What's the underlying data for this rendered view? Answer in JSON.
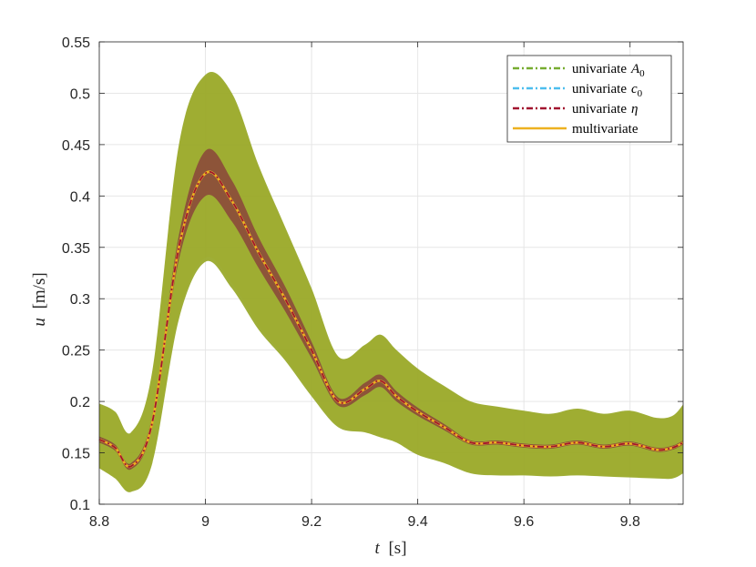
{
  "chart_data": {
    "type": "line",
    "xlabel_var": "t",
    "xlabel_unit": "[s]",
    "ylabel_var": "u",
    "ylabel_unit": "[m/s]",
    "xlim": [
      8.8,
      9.9
    ],
    "ylim": [
      0.1,
      0.55
    ],
    "xticks": [
      8.8,
      9.0,
      9.2,
      9.4,
      9.6,
      9.8
    ],
    "xtick_labels": [
      "8.8",
      "9",
      "9.2",
      "9.4",
      "9.6",
      "9.8"
    ],
    "yticks": [
      0.1,
      0.15,
      0.2,
      0.25,
      0.3,
      0.35,
      0.4,
      0.45,
      0.5,
      0.55
    ],
    "ytick_labels": [
      "0.1",
      "0.15",
      "0.2",
      "0.25",
      "0.3",
      "0.35",
      "0.4",
      "0.45",
      "0.5",
      "0.55"
    ],
    "grid": true,
    "legend_position": "top-right",
    "colors": {
      "A0": "#77ac30",
      "c0": "#4dbeee",
      "eta": "#a2142f",
      "multi": "#edb120",
      "band_A0": "#9aaa2c",
      "band_eta": "#8b4a3a"
    },
    "series": [
      {
        "key": "A0",
        "name_prefix": "univariate",
        "name_symbol": "A",
        "name_subscript": "0",
        "style": "dash-dot",
        "x": [
          8.8,
          8.83,
          8.86,
          8.9,
          8.95,
          9.0,
          9.05,
          9.1,
          9.15,
          9.2,
          9.25,
          9.3,
          9.33,
          9.36,
          9.4,
          9.45,
          9.5,
          9.55,
          9.6,
          9.65,
          9.7,
          9.75,
          9.8,
          9.85,
          9.88,
          9.9
        ],
        "y": [
          0.163,
          0.155,
          0.137,
          0.18,
          0.35,
          0.422,
          0.395,
          0.345,
          0.3,
          0.25,
          0.2,
          0.212,
          0.22,
          0.205,
          0.19,
          0.175,
          0.16,
          0.16,
          0.157,
          0.156,
          0.16,
          0.156,
          0.159,
          0.153,
          0.155,
          0.16
        ],
        "band_lower": [
          0.135,
          0.125,
          0.112,
          0.14,
          0.28,
          0.336,
          0.31,
          0.27,
          0.24,
          0.205,
          0.175,
          0.17,
          0.165,
          0.16,
          0.148,
          0.14,
          0.13,
          0.128,
          0.128,
          0.127,
          0.128,
          0.127,
          0.126,
          0.125,
          0.125,
          0.13
        ],
        "band_upper": [
          0.198,
          0.19,
          0.17,
          0.23,
          0.45,
          0.518,
          0.5,
          0.43,
          0.37,
          0.31,
          0.244,
          0.255,
          0.265,
          0.25,
          0.232,
          0.215,
          0.2,
          0.195,
          0.191,
          0.188,
          0.193,
          0.188,
          0.191,
          0.184,
          0.186,
          0.197
        ]
      },
      {
        "key": "c0",
        "name_prefix": "univariate",
        "name_symbol": "c",
        "name_subscript": "0",
        "style": "dash-dot",
        "x": [
          8.8,
          8.83,
          8.86,
          8.9,
          8.95,
          9.0,
          9.05,
          9.1,
          9.15,
          9.2,
          9.25,
          9.3,
          9.33,
          9.36,
          9.4,
          9.45,
          9.5,
          9.55,
          9.6,
          9.65,
          9.7,
          9.75,
          9.8,
          9.85,
          9.88,
          9.9
        ],
        "y": [
          0.163,
          0.155,
          0.137,
          0.18,
          0.35,
          0.422,
          0.395,
          0.345,
          0.3,
          0.25,
          0.2,
          0.212,
          0.22,
          0.205,
          0.19,
          0.175,
          0.16,
          0.16,
          0.157,
          0.156,
          0.16,
          0.156,
          0.159,
          0.153,
          0.155,
          0.16
        ]
      },
      {
        "key": "eta",
        "name_prefix": "univariate",
        "name_symbol": "η",
        "name_subscript": "",
        "style": "dash-dot",
        "x": [
          8.8,
          8.83,
          8.86,
          8.9,
          8.95,
          9.0,
          9.05,
          9.1,
          9.15,
          9.2,
          9.25,
          9.3,
          9.33,
          9.36,
          9.4,
          9.45,
          9.5,
          9.55,
          9.6,
          9.65,
          9.7,
          9.75,
          9.8,
          9.85,
          9.88,
          9.9
        ],
        "y": [
          0.163,
          0.155,
          0.137,
          0.18,
          0.35,
          0.422,
          0.395,
          0.345,
          0.3,
          0.25,
          0.2,
          0.212,
          0.22,
          0.205,
          0.19,
          0.175,
          0.16,
          0.16,
          0.157,
          0.156,
          0.16,
          0.156,
          0.159,
          0.153,
          0.155,
          0.16
        ],
        "band_lower": [
          0.16,
          0.152,
          0.134,
          0.175,
          0.338,
          0.4,
          0.375,
          0.33,
          0.288,
          0.242,
          0.196,
          0.206,
          0.214,
          0.2,
          0.186,
          0.172,
          0.158,
          0.158,
          0.155,
          0.154,
          0.158,
          0.154,
          0.157,
          0.151,
          0.153,
          0.158
        ],
        "band_upper": [
          0.166,
          0.158,
          0.14,
          0.186,
          0.362,
          0.444,
          0.415,
          0.36,
          0.312,
          0.258,
          0.204,
          0.218,
          0.226,
          0.21,
          0.194,
          0.178,
          0.162,
          0.162,
          0.159,
          0.158,
          0.162,
          0.158,
          0.161,
          0.155,
          0.157,
          0.162
        ]
      },
      {
        "key": "multi",
        "name_prefix": "multivariate",
        "name_symbol": "",
        "name_subscript": "",
        "style": "solid",
        "x": [
          8.8,
          8.83,
          8.86,
          8.9,
          8.95,
          9.0,
          9.05,
          9.1,
          9.15,
          9.2,
          9.25,
          9.3,
          9.33,
          9.36,
          9.4,
          9.45,
          9.5,
          9.55,
          9.6,
          9.65,
          9.7,
          9.75,
          9.8,
          9.85,
          9.88,
          9.9
        ],
        "y": [
          0.163,
          0.155,
          0.137,
          0.18,
          0.35,
          0.422,
          0.395,
          0.345,
          0.3,
          0.25,
          0.2,
          0.212,
          0.22,
          0.205,
          0.19,
          0.175,
          0.16,
          0.16,
          0.157,
          0.156,
          0.16,
          0.156,
          0.159,
          0.153,
          0.155,
          0.16
        ],
        "band_lower": [
          0.135,
          0.126,
          0.113,
          0.142,
          0.285,
          0.34,
          0.315,
          0.274,
          0.243,
          0.208,
          0.177,
          0.171,
          0.166,
          0.161,
          0.149,
          0.141,
          0.131,
          0.129,
          0.129,
          0.128,
          0.129,
          0.128,
          0.127,
          0.126,
          0.126,
          0.131
        ],
        "band_upper": [
          0.197,
          0.189,
          0.169,
          0.228,
          0.448,
          0.516,
          0.498,
          0.428,
          0.368,
          0.308,
          0.243,
          0.254,
          0.264,
          0.249,
          0.231,
          0.214,
          0.199,
          0.194,
          0.19,
          0.187,
          0.192,
          0.187,
          0.19,
          0.183,
          0.185,
          0.196
        ]
      }
    ]
  }
}
